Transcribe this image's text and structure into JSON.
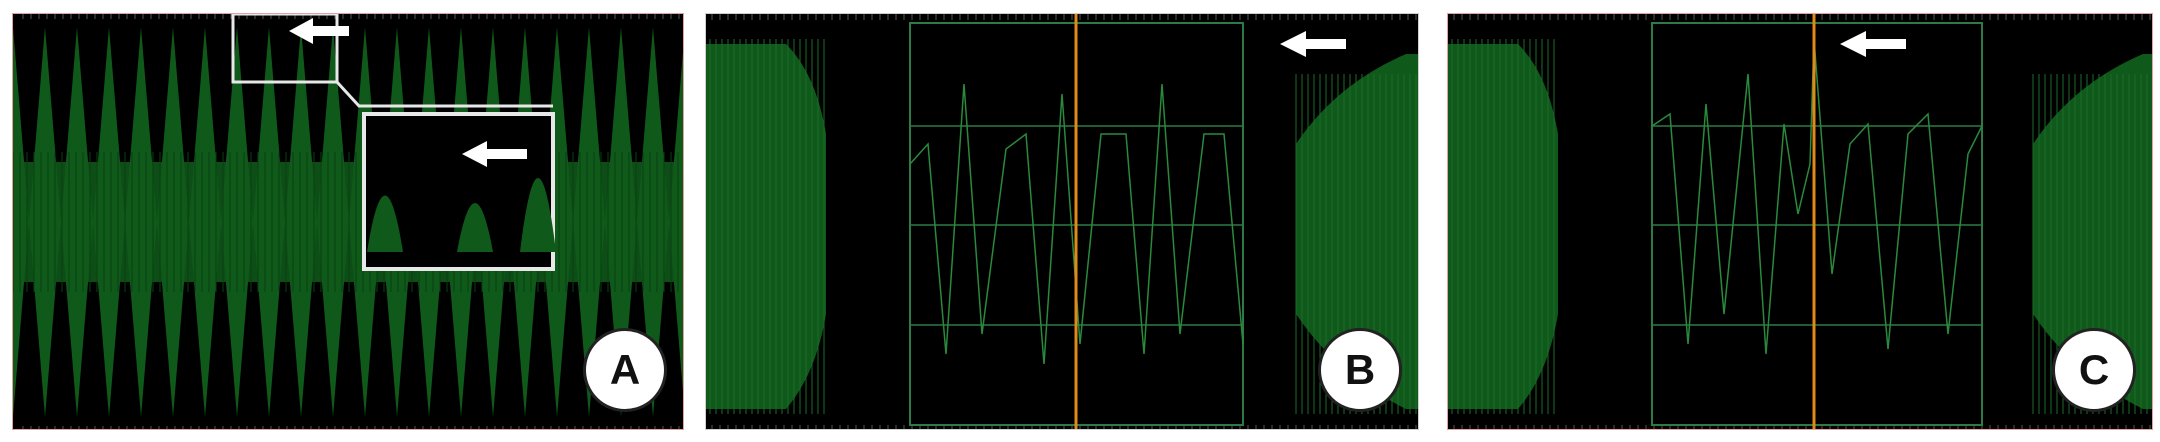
{
  "panels": [
    {
      "label": "A"
    },
    {
      "label": "B"
    },
    {
      "label": "C"
    }
  ],
  "colors": {
    "signal": "#0f5a1a",
    "signal_bright": "#2a8a3c",
    "grid": "#2e7a46",
    "cursor": "#e08a1a",
    "highlight_box": "#e8e8e8",
    "arrow": "#ffffff",
    "background": "#000000"
  },
  "icons": {
    "arrow": "arrow-left-icon"
  }
}
